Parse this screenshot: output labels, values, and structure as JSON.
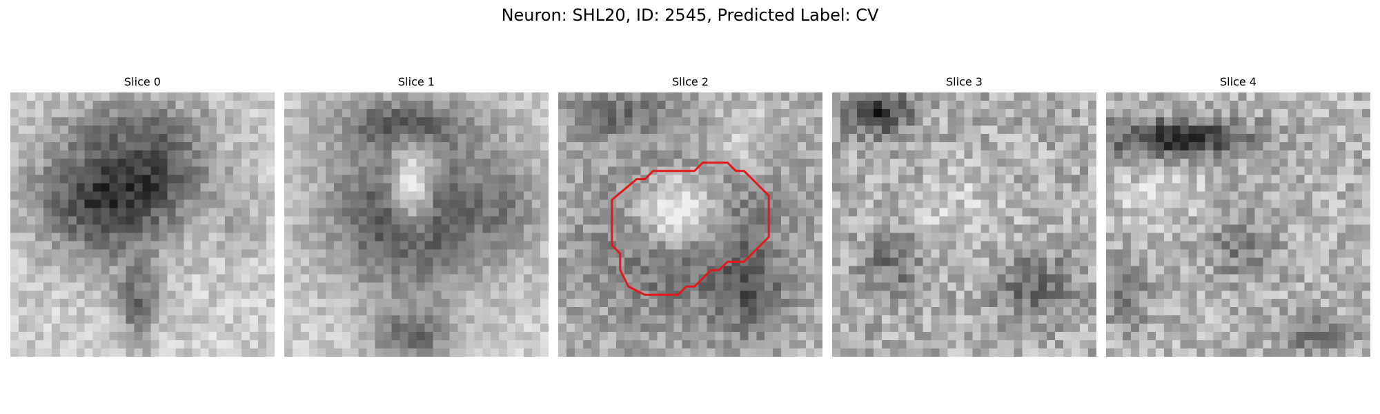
{
  "figure": {
    "title": "Neuron: SHL20, ID: 2545, Predicted Label: CV"
  },
  "panels": [
    {
      "title": "Slice 0",
      "has_contour": false
    },
    {
      "title": "Slice 1",
      "has_contour": false
    },
    {
      "title": "Slice 2",
      "has_contour": true
    },
    {
      "title": "Slice 3",
      "has_contour": false
    },
    {
      "title": "Slice 4",
      "has_contour": false
    }
  ],
  "colors": {
    "contour": "#e01a1a",
    "background": "#ffffff"
  }
}
